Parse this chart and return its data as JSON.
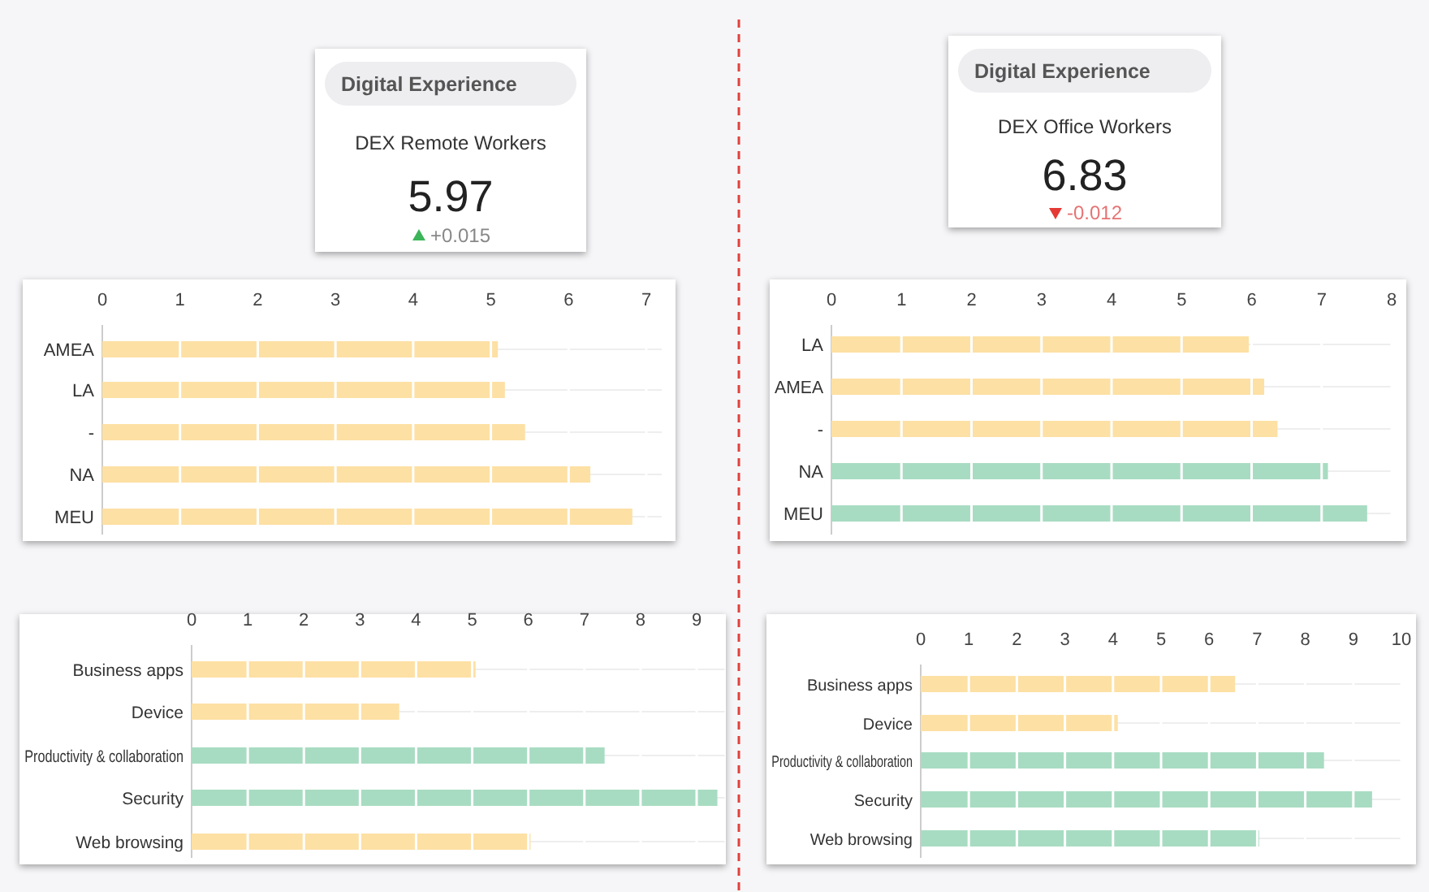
{
  "chart_data": [
    {
      "type": "other",
      "title": "Digital Experience",
      "subtitle": "DEX Remote Workers",
      "annotations": [
        "5.97",
        "+0.015"
      ]
    },
    {
      "type": "other",
      "title": "Digital Experience",
      "subtitle": "DEX Office Workers",
      "annotations": [
        "6.83",
        "-0.012"
      ]
    },
    {
      "type": "bar",
      "orientation": "horizontal",
      "categories": [
        "AMEA",
        "LA",
        "-",
        "NA",
        "MEU"
      ],
      "values": [
        5.09,
        5.18,
        5.44,
        6.28,
        6.82
      ],
      "colors": [
        "#fde0a4",
        "#fde0a4",
        "#fde0a4",
        "#fde0a4",
        "#fde0a4"
      ],
      "xlim": [
        0,
        7.2
      ],
      "xticks": [
        0,
        1,
        2,
        3,
        4,
        5,
        6,
        7
      ],
      "grid": "x"
    },
    {
      "type": "bar",
      "orientation": "horizontal",
      "categories": [
        "LA",
        "AMEA",
        "-",
        "NA",
        "MEU"
      ],
      "values": [
        5.96,
        6.18,
        6.37,
        7.09,
        7.65
      ],
      "colors": [
        "#fde0a4",
        "#fde0a4",
        "#fde0a4",
        "#a8dcc2",
        "#a8dcc2"
      ],
      "xlim": [
        0,
        8
      ],
      "xticks": [
        0,
        1,
        2,
        3,
        4,
        5,
        6,
        7,
        8
      ],
      "grid": "x"
    },
    {
      "type": "bar",
      "orientation": "horizontal",
      "categories": [
        "Business apps",
        "Device",
        "Productivity & collaboration",
        "Security",
        "Web browsing"
      ],
      "values": [
        5.06,
        3.7,
        7.36,
        9.37,
        6.04
      ],
      "colors": [
        "#fde0a4",
        "#fde0a4",
        "#a8dcc2",
        "#a8dcc2",
        "#fde0a4"
      ],
      "xlim": [
        0,
        9.5
      ],
      "xticks": [
        0,
        1,
        2,
        3,
        4,
        5,
        6,
        7,
        8,
        9
      ],
      "grid": "x"
    },
    {
      "type": "bar",
      "orientation": "horizontal",
      "categories": [
        "Business apps",
        "Device",
        "Productivity & collaboration",
        "Security",
        "Web browsing"
      ],
      "values": [
        6.54,
        4.1,
        8.39,
        9.39,
        7.04
      ],
      "colors": [
        "#fde0a4",
        "#fde0a4",
        "#a8dcc2",
        "#a8dcc2",
        "#a8dcc2"
      ],
      "xlim": [
        0,
        10
      ],
      "xticks": [
        0,
        1,
        2,
        3,
        4,
        5,
        6,
        7,
        8,
        9,
        10
      ],
      "grid": "x"
    }
  ]
}
